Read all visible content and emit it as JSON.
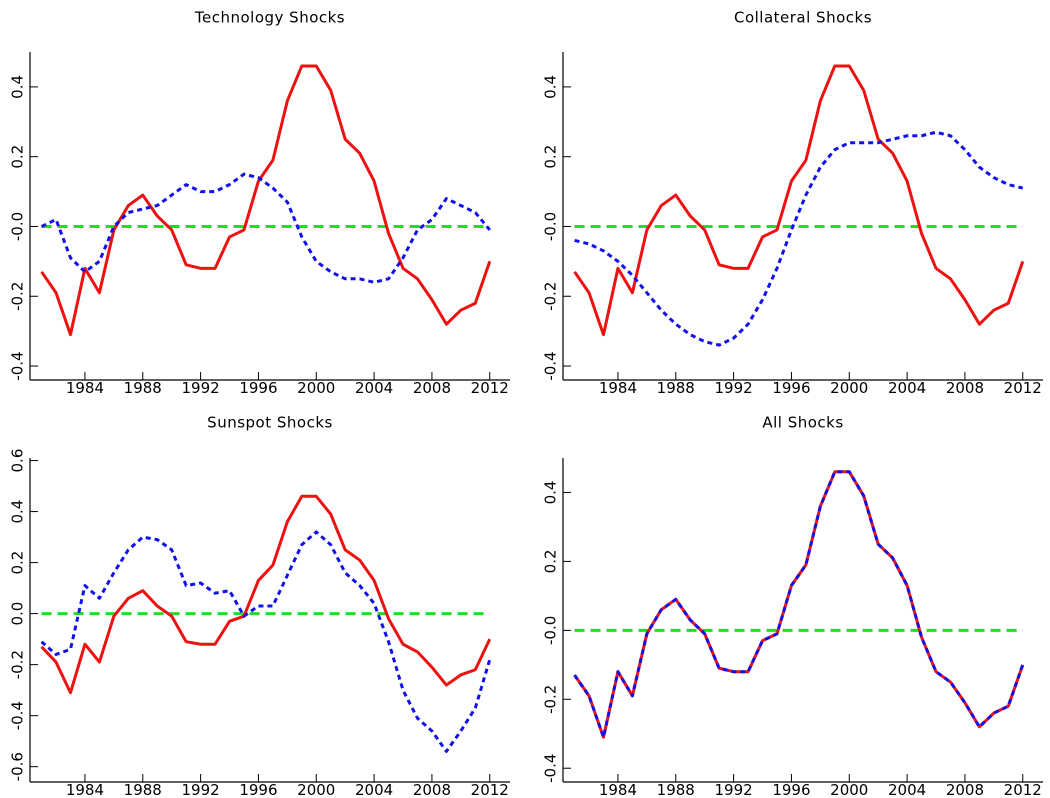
{
  "chart_data": [
    {
      "type": "line",
      "title": "Technology Shocks",
      "x": [
        1981,
        1982,
        1983,
        1984,
        1985,
        1986,
        1987,
        1988,
        1989,
        1990,
        1991,
        1992,
        1993,
        1994,
        1995,
        1996,
        1997,
        1998,
        1999,
        2000,
        2001,
        2002,
        2003,
        2004,
        2005,
        2006,
        2007,
        2008,
        2009,
        2010,
        2011,
        2012
      ],
      "series": [
        {
          "color": "#ee1111",
          "style": "solid",
          "values": [
            -0.13,
            -0.19,
            -0.31,
            -0.12,
            -0.19,
            -0.01,
            0.06,
            0.09,
            0.03,
            -0.01,
            -0.11,
            -0.12,
            -0.12,
            -0.03,
            -0.01,
            0.13,
            0.19,
            0.36,
            0.46,
            0.46,
            0.39,
            0.25,
            0.21,
            0.13,
            -0.02,
            -0.12,
            -0.15,
            -0.21,
            -0.28,
            -0.24,
            -0.22,
            -0.1
          ]
        },
        {
          "color": "#1111ee",
          "style": "dashed",
          "values": [
            0.0,
            0.02,
            -0.09,
            -0.13,
            -0.1,
            0.0,
            0.04,
            0.05,
            0.06,
            0.09,
            0.12,
            0.1,
            0.1,
            0.12,
            0.15,
            0.14,
            0.11,
            0.07,
            -0.03,
            -0.1,
            -0.13,
            -0.15,
            -0.15,
            -0.16,
            -0.15,
            -0.09,
            -0.01,
            0.02,
            0.08,
            0.06,
            0.04,
            -0.01
          ]
        }
      ],
      "zero_line": {
        "value": 0,
        "color": "#22dd22"
      },
      "xlim": [
        1980.2,
        2013.4
      ],
      "xticks": [
        1984,
        1988,
        1992,
        1996,
        2000,
        2004,
        2008,
        2012
      ],
      "ylim": [
        -0.44,
        0.5
      ],
      "yticks": [
        -0.4,
        -0.2,
        {
          "value": 0,
          "label": "-0.0"
        },
        0.2,
        0.4
      ]
    },
    {
      "type": "line",
      "title": "Collateral Shocks",
      "x": [
        1981,
        1982,
        1983,
        1984,
        1985,
        1986,
        1987,
        1988,
        1989,
        1990,
        1991,
        1992,
        1993,
        1994,
        1995,
        1996,
        1997,
        1998,
        1999,
        2000,
        2001,
        2002,
        2003,
        2004,
        2005,
        2006,
        2007,
        2008,
        2009,
        2010,
        2011,
        2012
      ],
      "series": [
        {
          "color": "#ee1111",
          "style": "solid",
          "values": [
            -0.13,
            -0.19,
            -0.31,
            -0.12,
            -0.19,
            -0.01,
            0.06,
            0.09,
            0.03,
            -0.01,
            -0.11,
            -0.12,
            -0.12,
            -0.03,
            -0.01,
            0.13,
            0.19,
            0.36,
            0.46,
            0.46,
            0.39,
            0.25,
            0.21,
            0.13,
            -0.02,
            -0.12,
            -0.15,
            -0.21,
            -0.28,
            -0.24,
            -0.22,
            -0.1
          ]
        },
        {
          "color": "#1111ee",
          "style": "dashed",
          "values": [
            -0.04,
            -0.05,
            -0.07,
            -0.1,
            -0.14,
            -0.19,
            -0.24,
            -0.28,
            -0.31,
            -0.33,
            -0.34,
            -0.32,
            -0.28,
            -0.21,
            -0.12,
            -0.01,
            0.09,
            0.17,
            0.22,
            0.24,
            0.24,
            0.24,
            0.25,
            0.26,
            0.26,
            0.27,
            0.26,
            0.22,
            0.17,
            0.14,
            0.12,
            0.11
          ]
        }
      ],
      "zero_line": {
        "value": 0,
        "color": "#22dd22"
      },
      "xlim": [
        1980.2,
        2013.4
      ],
      "xticks": [
        1984,
        1988,
        1992,
        1996,
        2000,
        2004,
        2008,
        2012
      ],
      "ylim": [
        -0.44,
        0.5
      ],
      "yticks": [
        -0.4,
        -0.2,
        {
          "value": 0,
          "label": "-0.0"
        },
        0.2,
        0.4
      ]
    },
    {
      "type": "line",
      "title": "Sunspot Shocks",
      "x": [
        1981,
        1982,
        1983,
        1984,
        1985,
        1986,
        1987,
        1988,
        1989,
        1990,
        1991,
        1992,
        1993,
        1994,
        1995,
        1996,
        1997,
        1998,
        1999,
        2000,
        2001,
        2002,
        2003,
        2004,
        2005,
        2006,
        2007,
        2008,
        2009,
        2010,
        2011,
        2012
      ],
      "series": [
        {
          "color": "#ee1111",
          "style": "solid",
          "values": [
            -0.13,
            -0.19,
            -0.31,
            -0.12,
            -0.19,
            -0.01,
            0.06,
            0.09,
            0.03,
            -0.01,
            -0.11,
            -0.12,
            -0.12,
            -0.03,
            -0.01,
            0.13,
            0.19,
            0.36,
            0.46,
            0.46,
            0.39,
            0.25,
            0.21,
            0.13,
            -0.02,
            -0.12,
            -0.15,
            -0.21,
            -0.28,
            -0.24,
            -0.22,
            -0.1
          ]
        },
        {
          "color": "#1111ee",
          "style": "dashed",
          "values": [
            -0.11,
            -0.16,
            -0.14,
            0.11,
            0.06,
            0.16,
            0.25,
            0.3,
            0.29,
            0.25,
            0.11,
            0.12,
            0.08,
            0.09,
            -0.01,
            0.03,
            0.03,
            0.15,
            0.27,
            0.32,
            0.27,
            0.16,
            0.11,
            0.04,
            -0.11,
            -0.3,
            -0.41,
            -0.46,
            -0.54,
            -0.46,
            -0.37,
            -0.18
          ]
        }
      ],
      "zero_line": {
        "value": 0,
        "color": "#22dd22"
      },
      "xlim": [
        1980.2,
        2013.4
      ],
      "xticks": [
        1984,
        1988,
        1992,
        1996,
        2000,
        2004,
        2008,
        2012
      ],
      "ylim": [
        -0.66,
        0.61
      ],
      "yticks": [
        -0.6,
        -0.4,
        -0.2,
        {
          "value": 0,
          "label": "0.0"
        },
        0.2,
        0.4,
        0.6
      ]
    },
    {
      "type": "line",
      "title": "All Shocks",
      "x": [
        1981,
        1982,
        1983,
        1984,
        1985,
        1986,
        1987,
        1988,
        1989,
        1990,
        1991,
        1992,
        1993,
        1994,
        1995,
        1996,
        1997,
        1998,
        1999,
        2000,
        2001,
        2002,
        2003,
        2004,
        2005,
        2006,
        2007,
        2008,
        2009,
        2010,
        2011,
        2012
      ],
      "series": [
        {
          "color": "#ee1111",
          "style": "solid",
          "values": [
            -0.13,
            -0.19,
            -0.31,
            -0.12,
            -0.19,
            -0.01,
            0.06,
            0.09,
            0.03,
            -0.01,
            -0.11,
            -0.12,
            -0.12,
            -0.03,
            -0.01,
            0.13,
            0.19,
            0.36,
            0.46,
            0.46,
            0.39,
            0.25,
            0.21,
            0.13,
            -0.02,
            -0.12,
            -0.15,
            -0.21,
            -0.28,
            -0.24,
            -0.22,
            -0.1
          ]
        },
        {
          "color": "#1111ee",
          "style": "dashed",
          "values": [
            -0.13,
            -0.19,
            -0.31,
            -0.12,
            -0.19,
            -0.01,
            0.06,
            0.09,
            0.03,
            -0.01,
            -0.11,
            -0.12,
            -0.12,
            -0.03,
            -0.01,
            0.13,
            0.19,
            0.36,
            0.46,
            0.46,
            0.39,
            0.25,
            0.21,
            0.13,
            -0.02,
            -0.12,
            -0.15,
            -0.21,
            -0.28,
            -0.24,
            -0.22,
            -0.1
          ]
        }
      ],
      "zero_line": {
        "value": 0,
        "color": "#22dd22"
      },
      "xlim": [
        1980.2,
        2013.4
      ],
      "xticks": [
        1984,
        1988,
        1992,
        1996,
        2000,
        2004,
        2008,
        2012
      ],
      "ylim": [
        -0.44,
        0.5
      ],
      "yticks": [
        -0.4,
        -0.2,
        {
          "value": 0,
          "label": "-0.0"
        },
        0.2,
        0.4
      ]
    }
  ]
}
